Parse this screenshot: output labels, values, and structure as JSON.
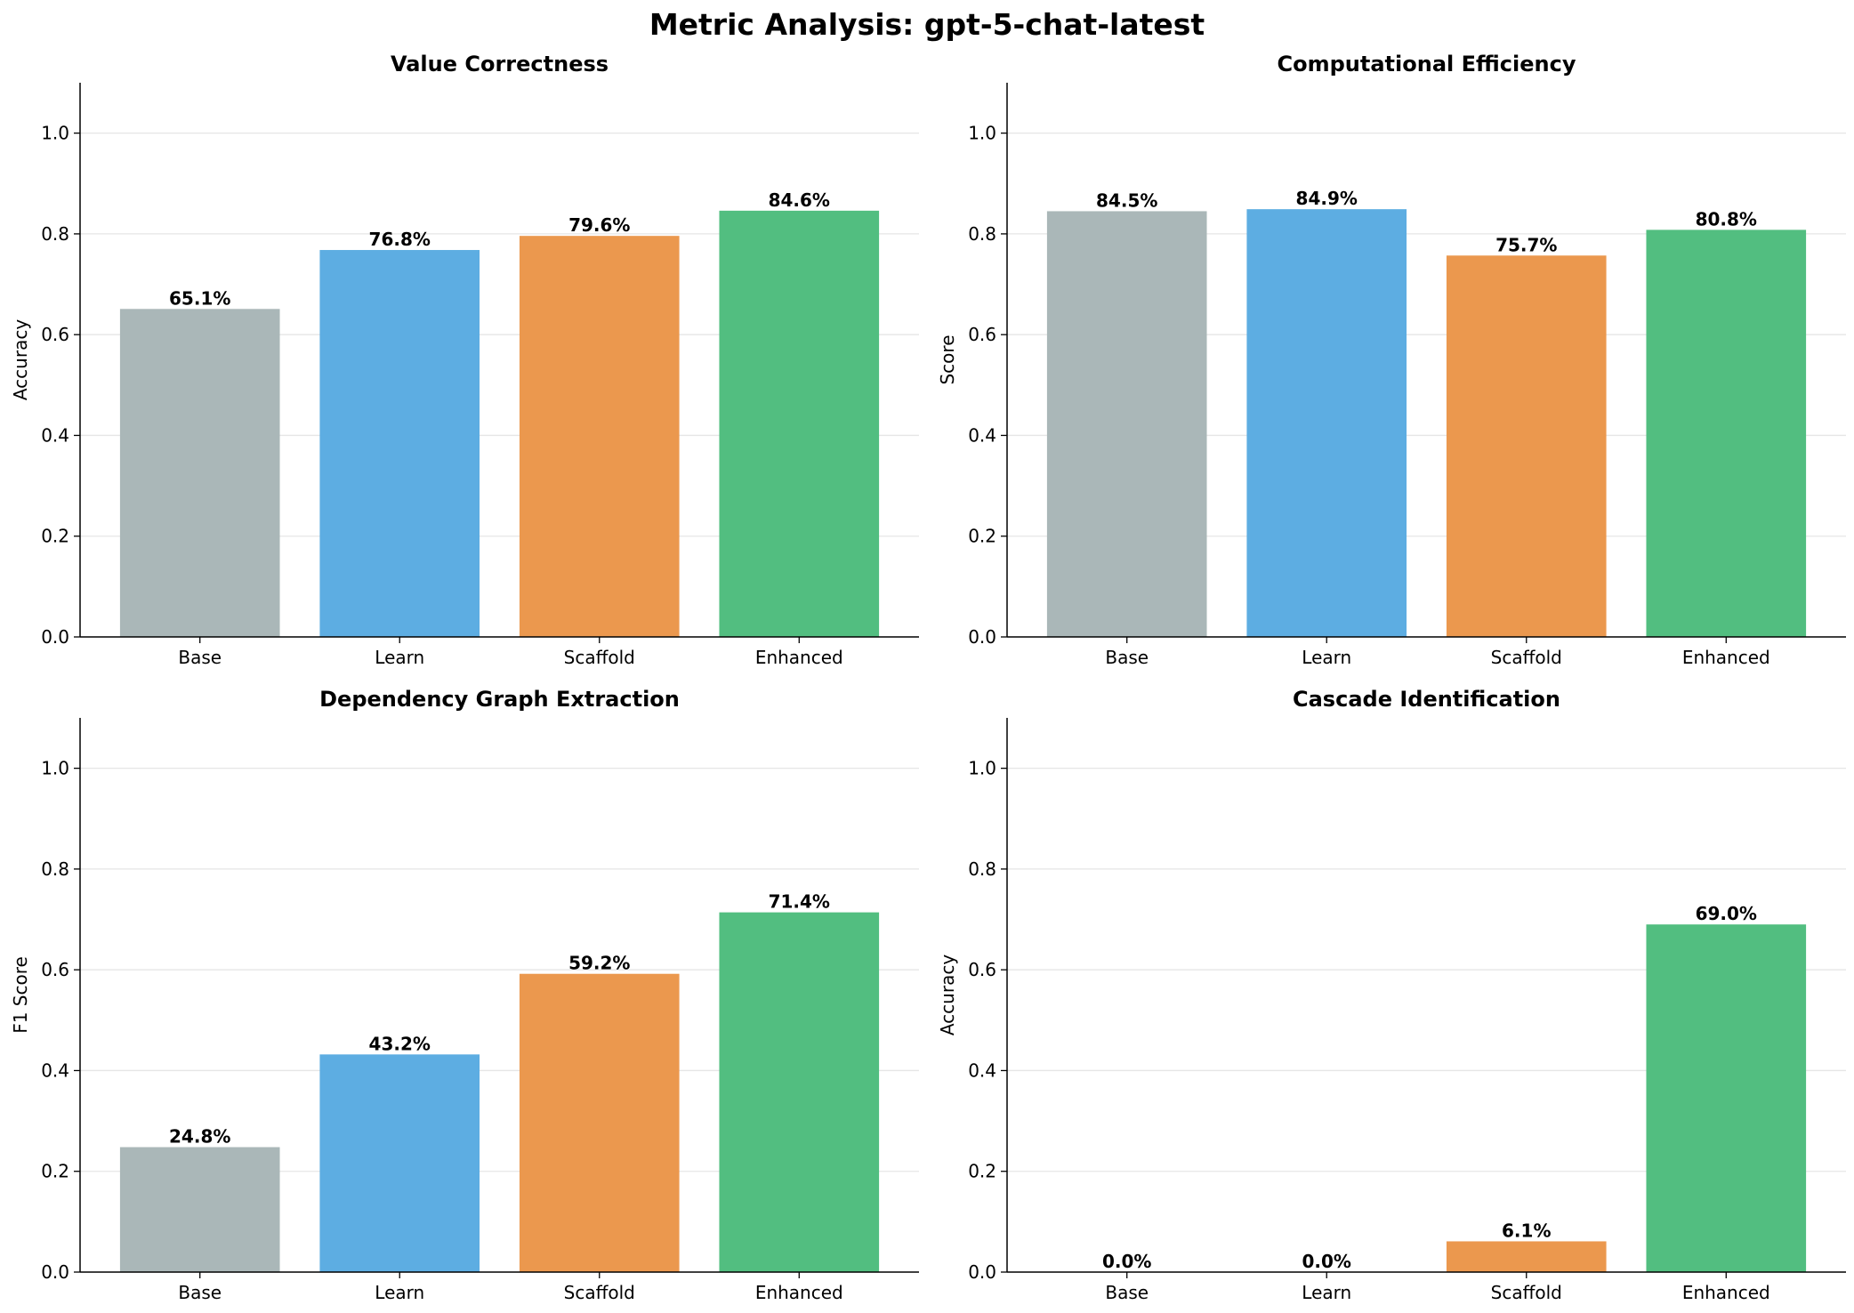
{
  "figure": {
    "title": "Metric Analysis: gpt-5-chat-latest"
  },
  "chart_data": [
    {
      "type": "bar",
      "title": "Value Correctness",
      "xlabel": "",
      "ylabel": "Accuracy",
      "categories": [
        "Base",
        "Learn",
        "Scaffold",
        "Enhanced"
      ],
      "values": [
        0.651,
        0.768,
        0.796,
        0.846
      ],
      "data_labels": [
        "65.1%",
        "76.8%",
        "79.6%",
        "84.6%"
      ],
      "colors": [
        "#aab7b8",
        "#5dade2",
        "#eb984e",
        "#52be80"
      ],
      "ylim": [
        0,
        1.1
      ],
      "yticks": [
        0.0,
        0.2,
        0.4,
        0.6,
        0.8,
        1.0
      ],
      "ytick_labels": [
        "0.0",
        "0.2",
        "0.4",
        "0.6",
        "0.8",
        "1.0"
      ],
      "grid": "y"
    },
    {
      "type": "bar",
      "title": "Computational Efficiency",
      "xlabel": "",
      "ylabel": "Score",
      "categories": [
        "Base",
        "Learn",
        "Scaffold",
        "Enhanced"
      ],
      "values": [
        0.845,
        0.849,
        0.757,
        0.808
      ],
      "data_labels": [
        "84.5%",
        "84.9%",
        "75.7%",
        "80.8%"
      ],
      "colors": [
        "#aab7b8",
        "#5dade2",
        "#eb984e",
        "#52be80"
      ],
      "ylim": [
        0,
        1.1
      ],
      "yticks": [
        0.0,
        0.2,
        0.4,
        0.6,
        0.8,
        1.0
      ],
      "ytick_labels": [
        "0.0",
        "0.2",
        "0.4",
        "0.6",
        "0.8",
        "1.0"
      ],
      "grid": "y"
    },
    {
      "type": "bar",
      "title": "Dependency Graph Extraction",
      "xlabel": "",
      "ylabel": "F1 Score",
      "categories": [
        "Base",
        "Learn",
        "Scaffold",
        "Enhanced"
      ],
      "values": [
        0.248,
        0.432,
        0.592,
        0.714
      ],
      "data_labels": [
        "24.8%",
        "43.2%",
        "59.2%",
        "71.4%"
      ],
      "colors": [
        "#aab7b8",
        "#5dade2",
        "#eb984e",
        "#52be80"
      ],
      "ylim": [
        0,
        1.1
      ],
      "yticks": [
        0.0,
        0.2,
        0.4,
        0.6,
        0.8,
        1.0
      ],
      "ytick_labels": [
        "0.0",
        "0.2",
        "0.4",
        "0.6",
        "0.8",
        "1.0"
      ],
      "grid": "y"
    },
    {
      "type": "bar",
      "title": "Cascade Identification",
      "xlabel": "",
      "ylabel": "Accuracy",
      "categories": [
        "Base",
        "Learn",
        "Scaffold",
        "Enhanced"
      ],
      "values": [
        0.0,
        0.0,
        0.061,
        0.69
      ],
      "data_labels": [
        "0.0%",
        "0.0%",
        "6.1%",
        "69.0%"
      ],
      "colors": [
        "#aab7b8",
        "#5dade2",
        "#eb984e",
        "#52be80"
      ],
      "ylim": [
        0,
        1.1
      ],
      "yticks": [
        0.0,
        0.2,
        0.4,
        0.6,
        0.8,
        1.0
      ],
      "ytick_labels": [
        "0.0",
        "0.2",
        "0.4",
        "0.6",
        "0.8",
        "1.0"
      ],
      "grid": "y"
    }
  ]
}
